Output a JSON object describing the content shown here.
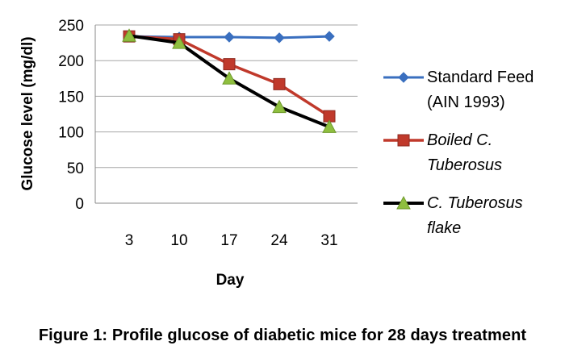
{
  "chart_data": {
    "type": "line",
    "xlabel": "Day",
    "ylabel": "Glucose level  (mg/dl)",
    "categories": [
      "3",
      "10",
      "17",
      "24",
      "31"
    ],
    "ylim": [
      0,
      250
    ],
    "yticks": [
      0,
      50,
      100,
      150,
      200,
      250
    ],
    "grid": "horizontal",
    "legend_position": "right",
    "series": [
      {
        "name": "Standard Feed (AIN 1993)",
        "legend_lines": [
          "Standard Feed",
          "(AIN 1993)"
        ],
        "italic": false,
        "color": "#3a6fbf",
        "marker": "diamond",
        "values": [
          234,
          233,
          233,
          232,
          234
        ]
      },
      {
        "name": "Boiled C. Tuberosus",
        "legend_lines": [
          "Boiled C.",
          "Tuberosus"
        ],
        "italic": true,
        "color": "#c0392b",
        "marker": "square",
        "values": [
          234,
          230,
          195,
          167,
          122
        ]
      },
      {
        "name": "C. Tuberosus flake",
        "legend_lines": [
          "C. Tuberosus",
          "flake"
        ],
        "italic": true,
        "color": "#000000",
        "marker_color": "#8fbf3f",
        "marker": "triangle",
        "values": [
          235,
          225,
          175,
          135,
          107
        ]
      }
    ]
  },
  "caption": "Figure 1: Profile glucose of diabetic mice for 28 days treatment"
}
